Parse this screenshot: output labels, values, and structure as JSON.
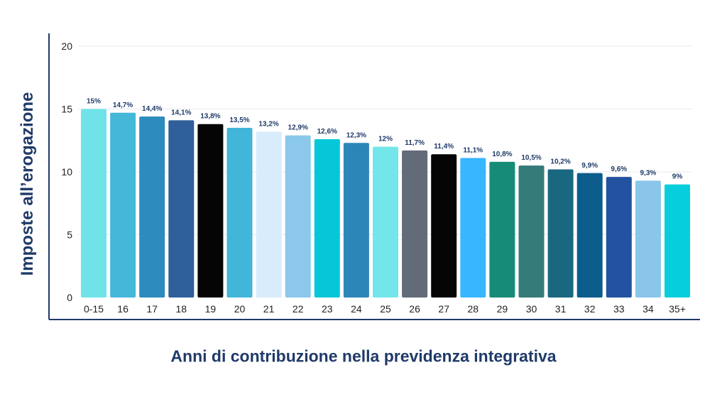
{
  "chart_data": {
    "type": "bar",
    "title": "",
    "xlabel": "Anni di contribuzione nella previdenza integrativa",
    "ylabel": "Imposte all’erogazione",
    "ylim": [
      0,
      20
    ],
    "yticks": [
      0,
      5,
      10,
      15,
      20
    ],
    "grid": true,
    "legend": "none",
    "categories": [
      "0-15",
      "16",
      "17",
      "18",
      "19",
      "20",
      "21",
      "22",
      "23",
      "24",
      "25",
      "26",
      "27",
      "28",
      "29",
      "30",
      "31",
      "32",
      "33",
      "34",
      "35+"
    ],
    "values": [
      15,
      14.7,
      14.4,
      14.1,
      13.8,
      13.5,
      13.2,
      12.9,
      12.6,
      12.3,
      12,
      11.7,
      11.4,
      11.1,
      10.8,
      10.5,
      10.2,
      9.9,
      9.6,
      9.3,
      9
    ],
    "data_labels": [
      "15%",
      "14,7%",
      "14,4%",
      "14,1%",
      "13,8%",
      "13,5%",
      "13,2%",
      "12,9%",
      "12,6%",
      "12,3%",
      "12%",
      "11,7%",
      "11,4%",
      "11,1%",
      "10,8%",
      "10,5%",
      "10,2%",
      "9,9%",
      "9,6%",
      "9,3%",
      "9%"
    ],
    "bar_colors": [
      "#6fe3e8",
      "#45b8d9",
      "#2e8bbd",
      "#2f5f9a",
      "#050505",
      "#42b6d8",
      "#d9ecfb",
      "#8cc8ea",
      "#06c7d7",
      "#2d86b8",
      "#72e6ea",
      "#636b7a",
      "#050505",
      "#38b6ff",
      "#168c78",
      "#347b7a",
      "#1a6880",
      "#0c5c8c",
      "#2353a0",
      "#8ac6ea",
      "#06cedc"
    ],
    "axis_color": "#1f3a68",
    "label_color": "#1f3a68"
  }
}
